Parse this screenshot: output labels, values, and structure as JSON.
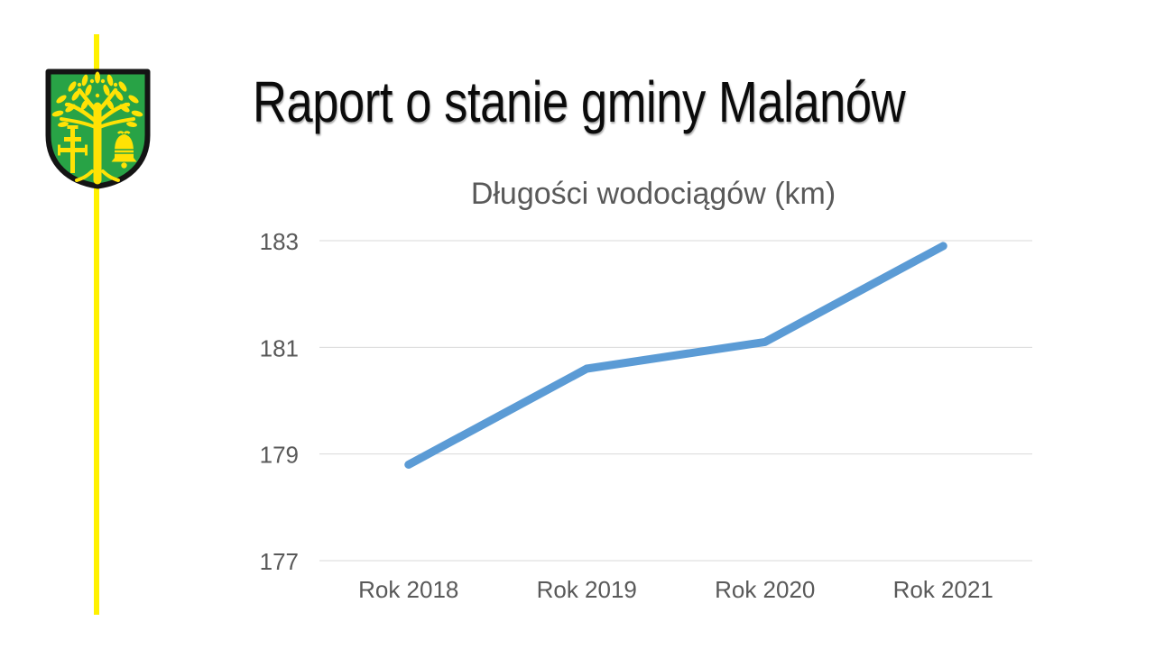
{
  "slide": {
    "title": "Raport o stanie gminy Malanów",
    "background_color": "#FFFFFF",
    "title_color": "#0B0B0B"
  },
  "branding": {
    "accent_line_color": "#FFF100",
    "coat_of_arms": {
      "icon": "malanow-coat-of-arms-icon",
      "shield_color": "#28A346",
      "charge_color": "#FFE205",
      "outline_color": "#141414",
      "charges": [
        "oak-tree",
        "patriarchal-cross",
        "bell"
      ]
    }
  },
  "chart_data": {
    "type": "line",
    "title": "Długości wodociągów (km)",
    "categories": [
      "Rok 2018",
      "Rok 2019",
      "Rok 2020",
      "Rok 2021"
    ],
    "series": [
      {
        "name": "Długości wodociągów (km)",
        "values": [
          178.8,
          180.6,
          181.1,
          182.9
        ]
      }
    ],
    "xlabel": "",
    "ylabel": "",
    "ylim": [
      177,
      183
    ],
    "yticks": [
      183,
      181,
      179,
      177
    ],
    "grid": true,
    "legend": "none",
    "line_color": "#5B9BD5",
    "line_width": 9,
    "title_color": "#595959",
    "tick_label_color": "#595959",
    "gridline_color": "#D9D9D9"
  }
}
